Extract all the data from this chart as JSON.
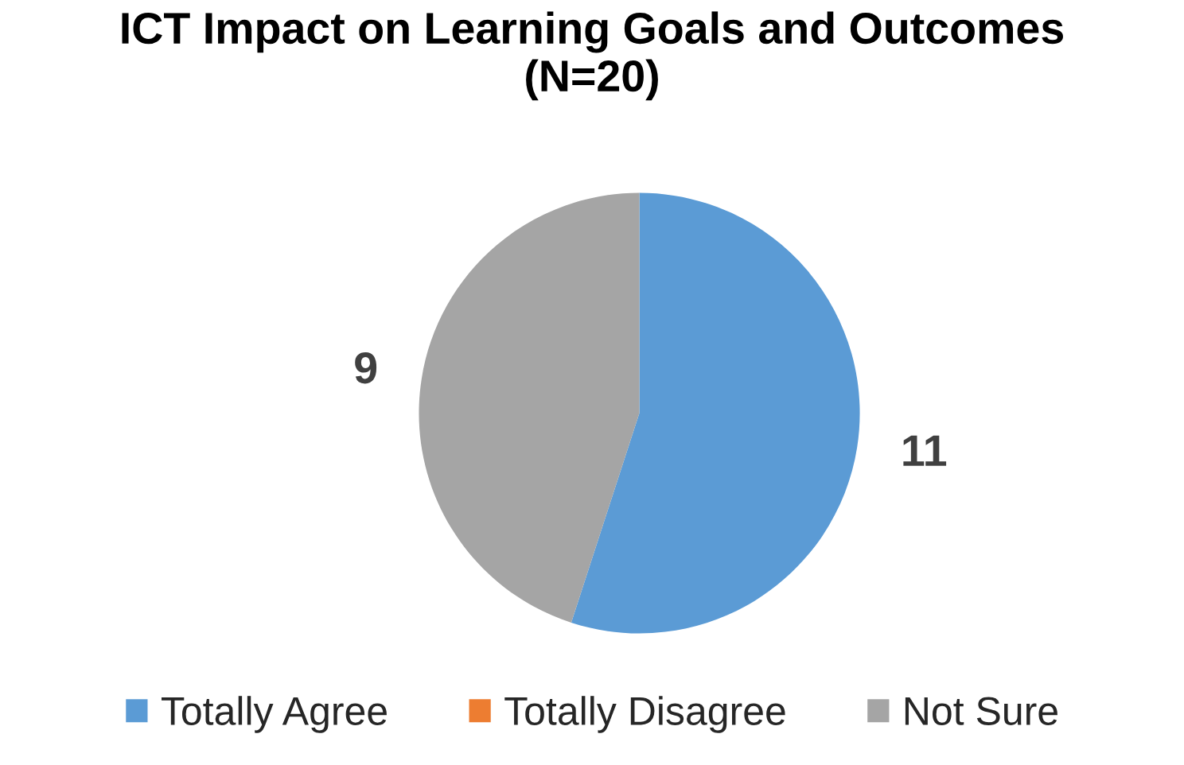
{
  "chart_data": {
    "type": "pie",
    "title": "ICT Impact on Learning Goals and Outcomes\n(N=20)",
    "categories": [
      "Totally Agree",
      "Totally Disagree",
      "Not Sure"
    ],
    "values": [
      11,
      0,
      9
    ],
    "colors": [
      "#5b9bd5",
      "#ed7d31",
      "#a5a5a5"
    ],
    "value_labels": [
      "11",
      null,
      "9"
    ],
    "legend": "bottom"
  }
}
